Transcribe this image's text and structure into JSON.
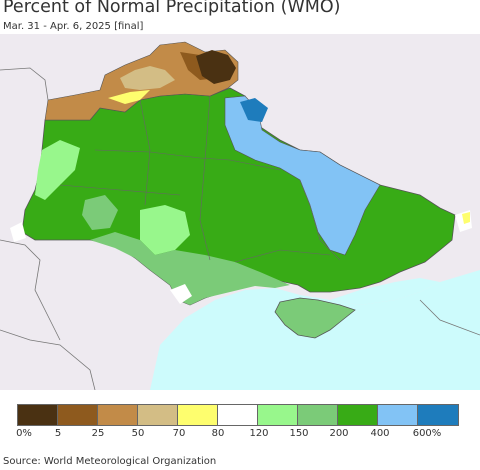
{
  "title": "Percent of Normal Precipitation (WMO)",
  "subtitle": "Mar. 31 - Apr. 6, 2025 [final]",
  "source": "Source: World Meteorological Organization",
  "legend": {
    "colors": [
      "#4a3112",
      "#8e5a1e",
      "#c28b48",
      "#d3bd85",
      "#fefe6e",
      "#ffffff",
      "#98f78c",
      "#7bcb78",
      "#38ab16",
      "#82c3f5",
      "#1e7cbc"
    ],
    "labels": [
      "0%",
      "5",
      "25",
      "50",
      "70",
      "80",
      "120",
      "150",
      "200",
      "400",
      "600%"
    ]
  },
  "map_colors": {
    "background": "#eeeaf0",
    "sea": "#cdfbfc",
    "borders": "#777777"
  }
}
